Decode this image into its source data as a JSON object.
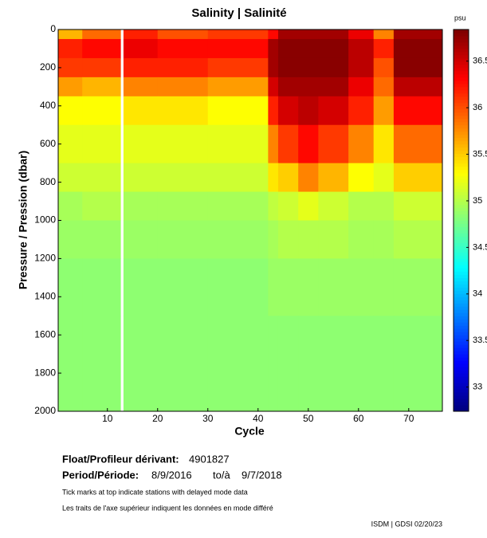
{
  "chart_data": {
    "type": "heatmap",
    "title": "Salinity | Salinité",
    "x_label": "Cycle",
    "y_label": "Pressure / Pression (dbar)",
    "colorbar_label": "psu",
    "x_edges": [
      0.2,
      5,
      12.6,
      13.2,
      20,
      30,
      42,
      44,
      48,
      52,
      58,
      63,
      67,
      76.7
    ],
    "y_edges": [
      0,
      50,
      150,
      250,
      350,
      500,
      700,
      850,
      1000,
      1200,
      1500,
      2000
    ],
    "z": [
      [
        35.6,
        35.9,
        null,
        36.2,
        36.0,
        36.1,
        36.3,
        36.7,
        36.7,
        36.7,
        36.4,
        35.8,
        36.7
      ],
      [
        36.2,
        36.3,
        null,
        36.4,
        36.3,
        36.3,
        36.7,
        36.8,
        36.8,
        36.8,
        36.6,
        36.2,
        36.8
      ],
      [
        36.1,
        36.1,
        null,
        36.2,
        36.2,
        36.1,
        36.7,
        36.8,
        36.8,
        36.8,
        36.6,
        36.0,
        36.8
      ],
      [
        35.7,
        35.6,
        null,
        35.8,
        35.8,
        35.7,
        36.5,
        36.7,
        36.7,
        36.7,
        36.4,
        35.9,
        36.6
      ],
      [
        35.3,
        35.3,
        null,
        35.4,
        35.4,
        35.3,
        36.2,
        36.5,
        36.6,
        36.5,
        36.2,
        35.7,
        36.3
      ],
      [
        35.2,
        35.2,
        null,
        35.2,
        35.2,
        35.2,
        35.8,
        36.1,
        36.3,
        36.1,
        35.8,
        35.4,
        35.9
      ],
      [
        35.1,
        35.1,
        null,
        35.1,
        35.1,
        35.1,
        35.4,
        35.5,
        35.8,
        35.6,
        35.3,
        35.2,
        35.5
      ],
      [
        34.95,
        35.0,
        null,
        34.95,
        34.95,
        34.95,
        35.05,
        35.1,
        35.2,
        35.1,
        35.0,
        35.0,
        35.1
      ],
      [
        34.9,
        34.9,
        null,
        34.9,
        34.9,
        34.9,
        34.95,
        35.0,
        35.0,
        35.0,
        34.95,
        34.95,
        35.0
      ],
      [
        34.85,
        34.85,
        null,
        34.85,
        34.85,
        34.85,
        34.9,
        34.9,
        34.9,
        34.9,
        34.9,
        34.9,
        34.9
      ],
      [
        34.85,
        34.85,
        null,
        34.85,
        34.85,
        34.85,
        34.85,
        34.85,
        34.85,
        34.85,
        34.85,
        34.85,
        34.85
      ]
    ],
    "xlim": [
      0.2,
      76.7
    ],
    "ylim": [
      2000,
      0
    ],
    "xticks": [
      10,
      20,
      30,
      40,
      50,
      60,
      70
    ],
    "yticks": [
      0,
      200,
      400,
      600,
      800,
      1000,
      1200,
      1400,
      1600,
      1800,
      2000
    ],
    "clim": [
      32.74,
      36.84
    ],
    "cticks": [
      33,
      33.5,
      34,
      34.5,
      35,
      35.5,
      36,
      36.5
    ],
    "colormap": "jet",
    "float_label": "Float/Profileur dérivant:",
    "float_id": "4901827",
    "period_label": "Period/Période:",
    "period_start": "8/9/2016",
    "period_to": "to/à",
    "period_end": "9/7/2018",
    "note_en": "Tick marks at top indicate stations with delayed mode data",
    "note_fr": "Les traits de l'axe supérieur indiquent les données en mode différé",
    "footer": "ISDM | GDSI 02/20/23"
  }
}
